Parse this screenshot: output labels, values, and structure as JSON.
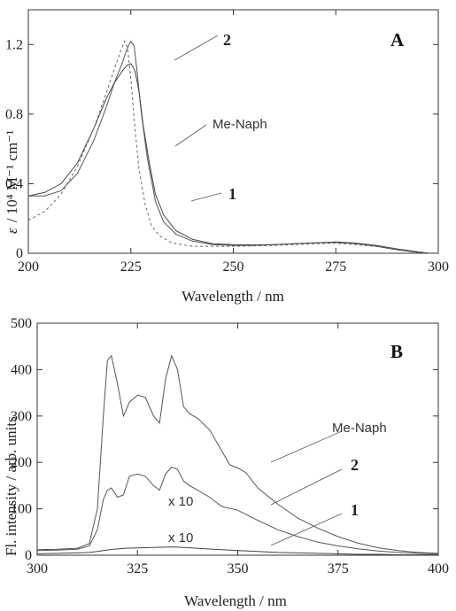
{
  "chart_data": [
    {
      "type": "line",
      "panel_label": "A",
      "xlabel": "Wavelength / nm",
      "ylabel_prefix": "ε",
      "ylabel": "/ 10⁴ M⁻¹ cm⁻¹",
      "xlim": [
        200,
        300
      ],
      "ylim": [
        0,
        1.4
      ],
      "x_ticks": [
        200,
        225,
        250,
        275,
        300
      ],
      "y_ticks": [
        0,
        0.4,
        0.8,
        1.2
      ],
      "y_tick_labels": [
        "0",
        "0.4",
        "0.8",
        "1.2"
      ],
      "grid": false,
      "series": [
        {
          "name": "2",
          "style": "solid",
          "color": "#555555",
          "points": [
            [
              200,
              0.33
            ],
            [
              204,
              0.33
            ],
            [
              208,
              0.36
            ],
            [
              212,
              0.46
            ],
            [
              216,
              0.65
            ],
            [
              219,
              0.84
            ],
            [
              221,
              0.98
            ],
            [
              223,
              1.1
            ],
            [
              224,
              1.17
            ],
            [
              225,
              1.22
            ],
            [
              225.8,
              1.19
            ],
            [
              226.5,
              1.05
            ],
            [
              227.5,
              0.82
            ],
            [
              229,
              0.55
            ],
            [
              231,
              0.3
            ],
            [
              233,
              0.18
            ],
            [
              236,
              0.11
            ],
            [
              240,
              0.07
            ],
            [
              245,
              0.05
            ],
            [
              250,
              0.045
            ],
            [
              255,
              0.045
            ],
            [
              260,
              0.05
            ],
            [
              265,
              0.055
            ],
            [
              270,
              0.06
            ],
            [
              275,
              0.062
            ],
            [
              280,
              0.055
            ],
            [
              285,
              0.04
            ],
            [
              290,
              0.02
            ],
            [
              295,
              0.005
            ],
            [
              298,
              0.0
            ]
          ]
        },
        {
          "name": "1",
          "style": "solid",
          "color": "#444444",
          "points": [
            [
              200,
              0.33
            ],
            [
              204,
              0.35
            ],
            [
              208,
              0.4
            ],
            [
              212,
              0.52
            ],
            [
              216,
              0.72
            ],
            [
              219,
              0.89
            ],
            [
              221,
              0.98
            ],
            [
              223,
              1.05
            ],
            [
              224,
              1.08
            ],
            [
              225,
              1.09
            ],
            [
              226,
              1.05
            ],
            [
              227,
              0.93
            ],
            [
              228,
              0.74
            ],
            [
              229.5,
              0.52
            ],
            [
              231,
              0.34
            ],
            [
              233,
              0.22
            ],
            [
              236,
              0.13
            ],
            [
              240,
              0.08
            ],
            [
              245,
              0.055
            ],
            [
              250,
              0.05
            ],
            [
              255,
              0.048
            ],
            [
              260,
              0.05
            ],
            [
              265,
              0.055
            ],
            [
              270,
              0.06
            ],
            [
              275,
              0.065
            ],
            [
              280,
              0.058
            ],
            [
              285,
              0.045
            ],
            [
              290,
              0.025
            ],
            [
              295,
              0.008
            ],
            [
              298,
              0.0
            ]
          ]
        },
        {
          "name": "Me-Naph",
          "style": "dashed",
          "color": "#666666",
          "points": [
            [
              200,
              0.19
            ],
            [
              204,
              0.24
            ],
            [
              208,
              0.34
            ],
            [
              212,
              0.5
            ],
            [
              216,
              0.72
            ],
            [
              219,
              0.92
            ],
            [
              221,
              1.06
            ],
            [
              222.5,
              1.16
            ],
            [
              223.5,
              1.22
            ],
            [
              224.2,
              1.18
            ],
            [
              225,
              1.0
            ],
            [
              226,
              0.72
            ],
            [
              227,
              0.48
            ],
            [
              228.5,
              0.28
            ],
            [
              230,
              0.16
            ],
            [
              232,
              0.1
            ],
            [
              235,
              0.06
            ],
            [
              240,
              0.04
            ],
            [
              250,
              0.04
            ],
            [
              260,
              0.045
            ],
            [
              270,
              0.055
            ],
            [
              275,
              0.058
            ],
            [
              280,
              0.05
            ],
            [
              285,
              0.038
            ],
            [
              290,
              0.02
            ],
            [
              295,
              0.005
            ],
            [
              298,
              0.0
            ]
          ]
        }
      ],
      "annotations": [
        "2",
        "Me-Naph",
        "1"
      ]
    },
    {
      "type": "line",
      "panel_label": "B",
      "xlabel": "Wavelength / nm",
      "ylabel": "Fl. intensity / arb. units",
      "xlim": [
        300,
        400
      ],
      "ylim": [
        0,
        500
      ],
      "x_ticks": [
        300,
        325,
        350,
        375,
        400
      ],
      "y_ticks": [
        0,
        100,
        200,
        300,
        400,
        500
      ],
      "grid": false,
      "series": [
        {
          "name": "Me-Naph",
          "style": "solid",
          "color": "#555555",
          "points": [
            [
              300,
              12
            ],
            [
              305,
              13
            ],
            [
              310,
              15
            ],
            [
              313,
              25
            ],
            [
              315,
              100
            ],
            [
              316.5,
              300
            ],
            [
              317.5,
              420
            ],
            [
              318.5,
              430
            ],
            [
              320,
              370
            ],
            [
              321.5,
              300
            ],
            [
              323,
              330
            ],
            [
              325,
              345
            ],
            [
              327,
              340
            ],
            [
              329,
              300
            ],
            [
              330.5,
              285
            ],
            [
              332,
              380
            ],
            [
              333.5,
              430
            ],
            [
              335,
              400
            ],
            [
              336.5,
              320
            ],
            [
              338,
              305
            ],
            [
              340,
              295
            ],
            [
              343,
              270
            ],
            [
              346,
              225
            ],
            [
              348,
              195
            ],
            [
              350,
              188
            ],
            [
              352,
              178
            ],
            [
              355,
              145
            ],
            [
              360,
              110
            ],
            [
              365,
              80
            ],
            [
              370,
              58
            ],
            [
              375,
              40
            ],
            [
              380,
              26
            ],
            [
              385,
              16
            ],
            [
              390,
              10
            ],
            [
              395,
              6
            ],
            [
              400,
              4
            ]
          ]
        },
        {
          "name": "2",
          "style": "solid",
          "color": "#555555",
          "points": [
            [
              300,
              10
            ],
            [
              305,
              11
            ],
            [
              310,
              13
            ],
            [
              313,
              20
            ],
            [
              315,
              55
            ],
            [
              316.5,
              120
            ],
            [
              317.5,
              140
            ],
            [
              318.5,
              145
            ],
            [
              320,
              125
            ],
            [
              321.5,
              130
            ],
            [
              323,
              170
            ],
            [
              325,
              175
            ],
            [
              327,
              170
            ],
            [
              329,
              150
            ],
            [
              330.5,
              140
            ],
            [
              332,
              175
            ],
            [
              333.5,
              190
            ],
            [
              335,
              185
            ],
            [
              336.5,
              160
            ],
            [
              338,
              150
            ],
            [
              340,
              140
            ],
            [
              343,
              125
            ],
            [
              346,
              105
            ],
            [
              350,
              97
            ],
            [
              355,
              75
            ],
            [
              360,
              55
            ],
            [
              365,
              40
            ],
            [
              370,
              28
            ],
            [
              375,
              20
            ],
            [
              380,
              14
            ],
            [
              385,
              9
            ],
            [
              390,
              6
            ],
            [
              395,
              4
            ],
            [
              400,
              3
            ]
          ]
        },
        {
          "name": "1",
          "style": "solid",
          "color": "#444444",
          "points": [
            [
              300,
              3
            ],
            [
              305,
              4
            ],
            [
              310,
              5
            ],
            [
              313,
              6
            ],
            [
              315,
              8
            ],
            [
              318,
              12
            ],
            [
              322,
              15
            ],
            [
              326,
              16
            ],
            [
              330,
              17
            ],
            [
              334,
              18
            ],
            [
              338,
              16
            ],
            [
              342,
              14
            ],
            [
              346,
              12
            ],
            [
              350,
              10
            ],
            [
              355,
              8
            ],
            [
              360,
              6
            ],
            [
              365,
              5
            ],
            [
              370,
              4
            ],
            [
              375,
              3
            ],
            [
              380,
              2
            ],
            [
              385,
              2
            ],
            [
              390,
              1
            ],
            [
              395,
              1
            ],
            [
              400,
              1
            ]
          ]
        }
      ],
      "annotations": [
        "Me-Naph",
        "2",
        "1",
        "x 10",
        "x 10"
      ]
    }
  ]
}
